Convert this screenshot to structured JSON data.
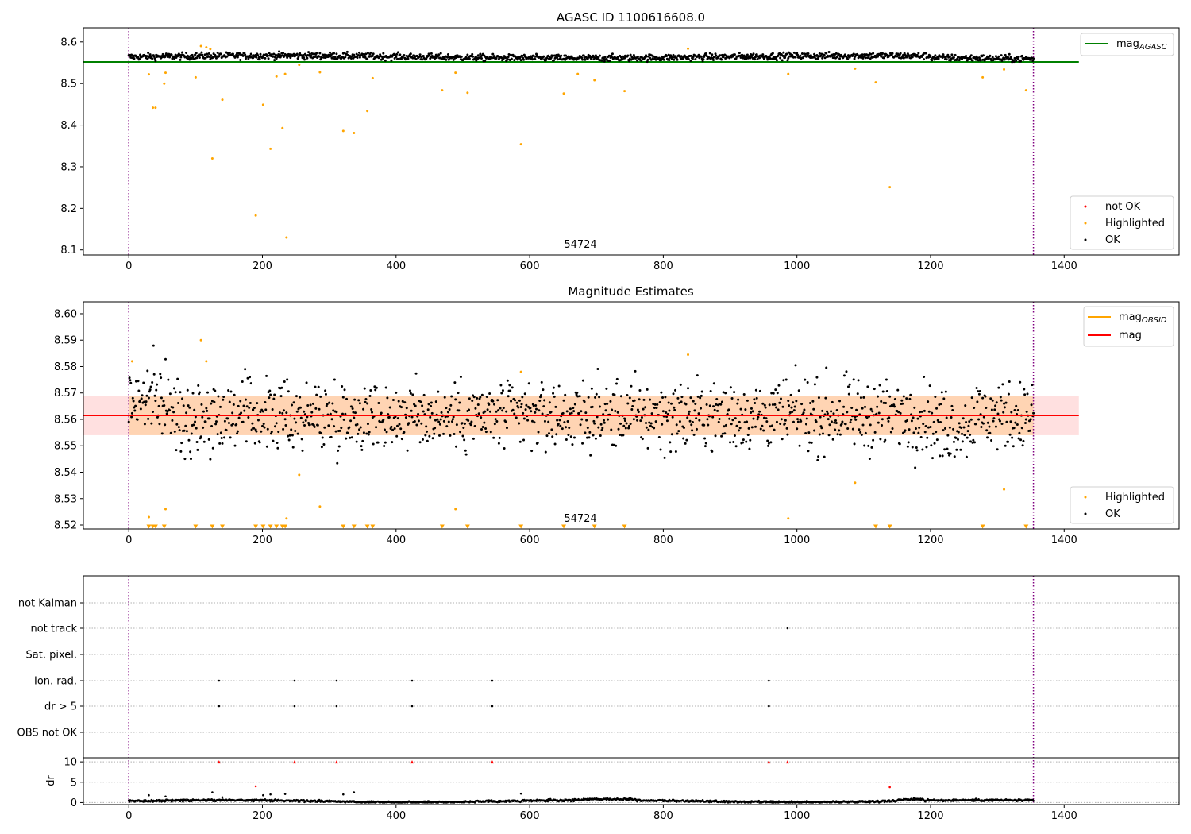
{
  "chart_data": [
    {
      "type": "scatter",
      "title": "AGASC ID 1100616608.0",
      "xlim": [
        -68,
        1572
      ],
      "ylim": [
        8.088,
        8.634
      ],
      "xticks": [
        0,
        200,
        400,
        600,
        800,
        1000,
        1200,
        1400
      ],
      "yticks": [
        8.1,
        8.2,
        8.3,
        8.4,
        8.5,
        8.6
      ],
      "ytick_labels": [
        "8.1",
        "8.2",
        "8.3",
        "8.4",
        "8.5",
        "8.6"
      ],
      "obs_boundaries": [
        0,
        1354
      ],
      "obsid_label": "54724",
      "reference_line": {
        "name": "mag_AGASC",
        "label_main": "mag",
        "label_sub": "AGASC",
        "y": 8.552,
        "x_range": [
          -68,
          1422
        ],
        "color": "#008000"
      },
      "ok_series": {
        "name": "OK",
        "color": "#000000",
        "baseline": 8.564,
        "amplitude": 0.005,
        "spread": 0.004
      },
      "highlighted": {
        "name": "Highlighted",
        "color": "#ffa500",
        "x": [
          30,
          36,
          40,
          53,
          55,
          100,
          108,
          116,
          122,
          125,
          140,
          201,
          212,
          221,
          230,
          234,
          236,
          255,
          286,
          321,
          337,
          357,
          365,
          469,
          489,
          507,
          587,
          651,
          672,
          697,
          742,
          837,
          987,
          1087,
          1118,
          1139,
          1278,
          1310,
          1343
        ],
        "y": [
          8.522,
          8.442,
          8.442,
          8.5,
          8.526,
          8.515,
          8.59,
          8.587,
          8.583,
          8.32,
          8.461,
          8.449,
          8.343,
          8.517,
          8.393,
          8.523,
          8.13,
          8.545,
          8.527,
          8.386,
          8.381,
          8.434,
          8.513,
          8.484,
          8.526,
          8.478,
          8.354,
          8.476,
          8.523,
          8.508,
          8.482,
          8.584,
          8.523,
          8.536,
          8.503,
          8.251,
          8.515,
          8.534,
          8.484
        ]
      },
      "extra_points": [
        {
          "x": 190,
          "y": 8.183
        }
      ],
      "legend": {
        "position": "lower-right",
        "entries": [
          "not OK",
          "Highlighted",
          "OK"
        ],
        "colors": [
          "#ff0000",
          "#ffa500",
          "#000000"
        ]
      },
      "legend_line": {
        "position": "upper-right"
      }
    },
    {
      "type": "scatter",
      "title": "Magnitude Estimates",
      "xlim": [
        -68,
        1572
      ],
      "ylim": [
        8.5185,
        8.6045
      ],
      "xticks": [
        0,
        200,
        400,
        600,
        800,
        1000,
        1200,
        1400
      ],
      "yticks": [
        8.52,
        8.53,
        8.54,
        8.55,
        8.56,
        8.57,
        8.58,
        8.59,
        8.6
      ],
      "ytick_labels": [
        "8.52",
        "8.53",
        "8.54",
        "8.55",
        "8.56",
        "8.57",
        "8.58",
        "8.59",
        "8.60"
      ],
      "obs_boundaries": [
        0,
        1354
      ],
      "obsid_label": "54724",
      "mean_mag": 8.5615,
      "mag_band": [
        8.554,
        8.569
      ],
      "lines": [
        {
          "name": "mag_OBSID",
          "label_main": "mag",
          "label_sub": "OBSID",
          "y": 8.5615,
          "x_range": [
            0,
            1354
          ],
          "color": "#ffa500"
        },
        {
          "name": "mag",
          "label_main": "mag",
          "label_sub": "",
          "y": 8.5615,
          "x_range": [
            -68,
            1422
          ],
          "color": "#ff0000"
        }
      ],
      "ok_series": {
        "name": "OK",
        "color": "#000000",
        "baseline": 8.5615,
        "spread": 0.0065
      },
      "highlighted": {
        "name": "Highlighted",
        "color": "#ffa500",
        "x": [
          5,
          30,
          55,
          108,
          116,
          236,
          255,
          286,
          489,
          587,
          837,
          987,
          1087,
          1310
        ],
        "y": [
          8.582,
          8.523,
          8.526,
          8.59,
          8.582,
          8.5225,
          8.539,
          8.527,
          8.526,
          8.578,
          8.5845,
          8.5225,
          8.536,
          8.5335
        ]
      },
      "below_range_markers_x": [
        30,
        36,
        40,
        53,
        100,
        125,
        140,
        190,
        201,
        212,
        221,
        230,
        234,
        321,
        337,
        357,
        365,
        469,
        507,
        587,
        651,
        697,
        742,
        1118,
        1139,
        1278,
        1343
      ],
      "legend": {
        "position": "lower-right",
        "entries": [
          "Highlighted",
          "OK"
        ],
        "colors": [
          "#ffa500",
          "#000000"
        ]
      },
      "legend_line": {
        "position": "upper-right"
      }
    },
    {
      "type": "scatter",
      "title": "",
      "xlim": [
        -68,
        1572
      ],
      "xticks": [
        0,
        200,
        400,
        600,
        800,
        1000,
        1200,
        1400
      ],
      "obs_boundaries": [
        0,
        1354
      ],
      "flag_rows": [
        "not Kalman",
        "not track",
        "Sat. pixel.",
        "Ion. rad.",
        "dr > 5",
        "OBS not OK"
      ],
      "flag_points": {
        "not Kalman": [],
        "not track": [
          986
        ],
        "Sat. pixel.": [],
        "Ion. rad.": [
          135,
          248,
          311,
          424,
          544,
          958
        ],
        "dr > 5": [
          135,
          248,
          311,
          424,
          544,
          958
        ],
        "OBS not OK": []
      },
      "dr": {
        "ylabel": "dr",
        "ylim": [
          -0.5,
          11
        ],
        "yticks": [
          0,
          5,
          10
        ],
        "ytick_labels": [
          "0",
          "5",
          "10"
        ],
        "clip_value": 10,
        "clipped_x": [
          135,
          248,
          311,
          424,
          544,
          958,
          986
        ],
        "notok_x": [
          190,
          1139
        ],
        "notok_y": [
          4.0,
          3.8
        ],
        "outliers_x": [
          30,
          55,
          125,
          140,
          201,
          212,
          234,
          321,
          337,
          587
        ],
        "outliers_y": [
          1.8,
          1.5,
          2.5,
          1.3,
          1.8,
          2.0,
          2.1,
          2.0,
          2.5,
          2.2
        ]
      }
    }
  ]
}
